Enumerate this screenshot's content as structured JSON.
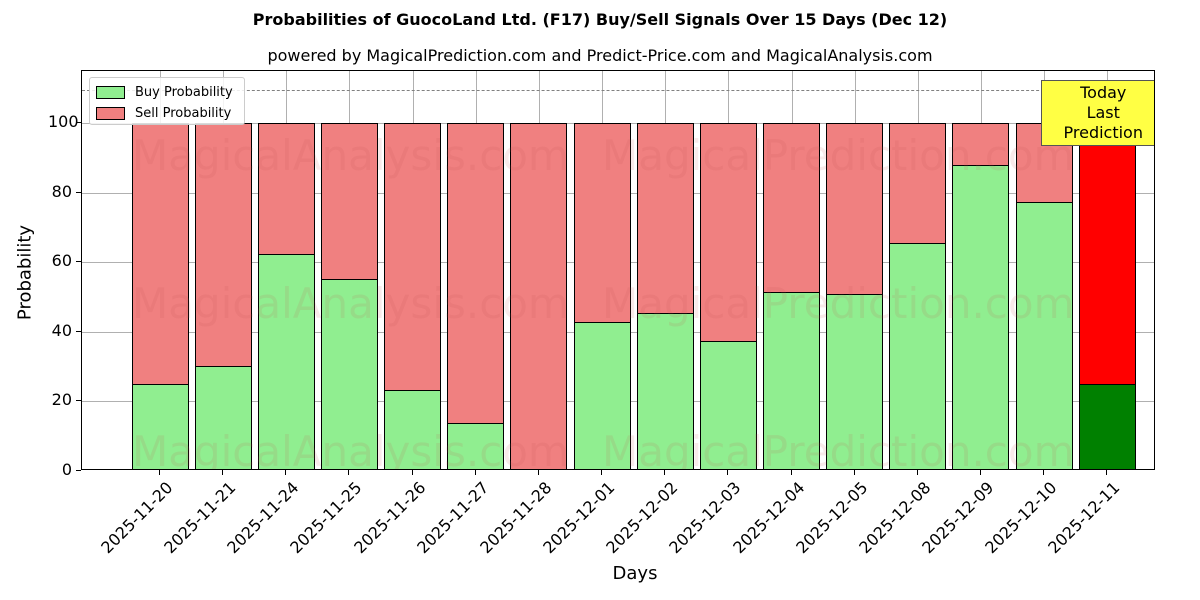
{
  "title": "Probabilities of GuocoLand Ltd. (F17) Buy/Sell Signals Over 15 Days (Dec 12)",
  "subtitle": "powered by MagicalPrediction.com and Predict-Price.com and MagicalAnalysis.com",
  "legend": {
    "buy": "Buy Probability",
    "sell": "Sell Probability"
  },
  "annotation": {
    "line1": "Today",
    "line2": "Last Prediction"
  },
  "watermarks": [
    "MagicalAnalysis.com",
    "MagicalPrediction.com"
  ],
  "colors": {
    "buy": "#90ee90",
    "sell": "#f08080",
    "today_buy": "#008000",
    "today_sell": "#ff0000",
    "annotation_bg": "#ffff44"
  },
  "chart_data": {
    "type": "bar",
    "stacked": true,
    "title": "Probabilities of GuocoLand Ltd. (F17) Buy/Sell Signals Over 15 Days (Dec 12)",
    "subtitle": "powered by MagicalPrediction.com and Predict-Price.com and MagicalAnalysis.com",
    "xlabel": "Days",
    "ylabel": "Probability",
    "ylim": [
      0,
      115
    ],
    "yticks": [
      0,
      20,
      40,
      60,
      80,
      100
    ],
    "grid": true,
    "legend_position": "upper left",
    "reference_line": {
      "y": 110,
      "style": "dashed",
      "color": "#808080"
    },
    "categories": [
      "2025-11-20",
      "2025-11-21",
      "2025-11-24",
      "2025-11-25",
      "2025-11-26",
      "2025-11-27",
      "2025-11-28",
      "2025-12-01",
      "2025-12-02",
      "2025-12-03",
      "2025-12-04",
      "2025-12-05",
      "2025-12-08",
      "2025-12-09",
      "2025-12-10",
      "2025-12-11"
    ],
    "series": [
      {
        "name": "Buy Probability",
        "values": [
          24.9,
          30.3,
          62.4,
          55.2,
          23.4,
          13.9,
          0.0,
          42.8,
          45.4,
          37.3,
          51.4,
          50.9,
          65.6,
          87.9,
          77.2,
          24.9
        ]
      },
      {
        "name": "Sell Probability",
        "values": [
          75.1,
          69.7,
          37.6,
          44.8,
          76.6,
          86.1,
          100.0,
          57.2,
          54.6,
          62.7,
          48.6,
          49.1,
          34.4,
          12.1,
          22.8,
          75.1
        ]
      }
    ],
    "annotations": [
      {
        "text": "Today\nLast Prediction",
        "x": "2025-12-11",
        "y": 105
      }
    ]
  }
}
